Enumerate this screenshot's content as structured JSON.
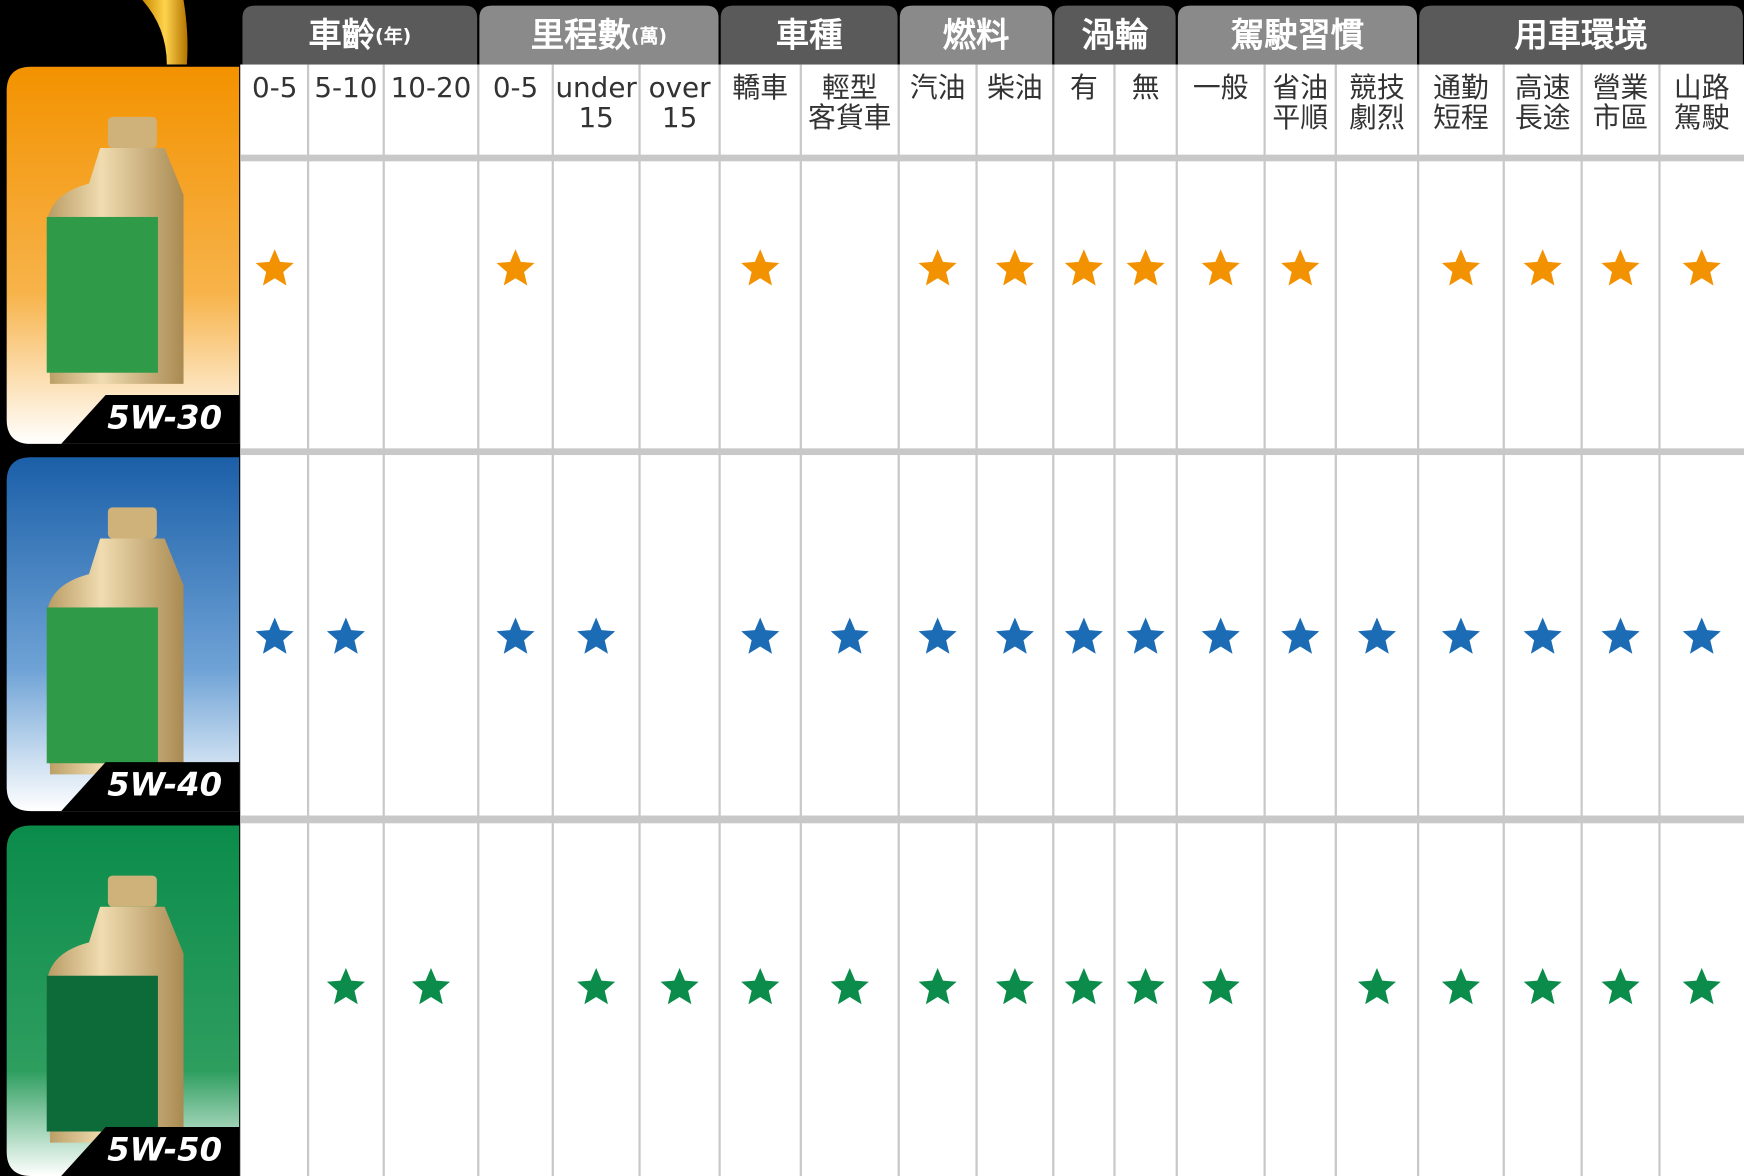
{
  "groups": [
    {
      "label": "車齡",
      "unit": "(年)",
      "columns": [
        [
          "0-5"
        ],
        [
          "5-10"
        ],
        [
          "10-20"
        ]
      ]
    },
    {
      "label": "里程數",
      "unit": "(萬)",
      "columns": [
        [
          "0-5"
        ],
        [
          "under",
          "15"
        ],
        [
          "over",
          "15"
        ]
      ]
    },
    {
      "label": "車種",
      "columns": [
        [
          "轎車"
        ],
        [
          "輕型",
          "客貨車"
        ]
      ]
    },
    {
      "label": "燃料",
      "columns": [
        [
          "汽油"
        ],
        [
          "柴油"
        ]
      ]
    },
    {
      "label": "渦輪",
      "columns": [
        [
          "有"
        ],
        [
          "無"
        ]
      ]
    },
    {
      "label": "駕駛習慣",
      "columns": [
        [
          "一般"
        ],
        [
          "省油",
          "平順"
        ],
        [
          "競技",
          "劇烈"
        ]
      ]
    },
    {
      "label": "用車環境",
      "columns": [
        [
          "通勤",
          "短程"
        ],
        [
          "高速",
          "長途"
        ],
        [
          "營業",
          "市區"
        ],
        [
          "山路",
          "駕駛"
        ]
      ]
    }
  ],
  "rows": [
    {
      "name": "5W-30",
      "color": "#f39200",
      "ratings": [
        true,
        false,
        false,
        true,
        false,
        false,
        true,
        false,
        true,
        true,
        true,
        true,
        true,
        true,
        false,
        true,
        true,
        true,
        true
      ]
    },
    {
      "name": "5W-40",
      "color": "#1b6cb4",
      "ratings": [
        true,
        true,
        false,
        true,
        true,
        false,
        true,
        true,
        true,
        true,
        true,
        true,
        true,
        true,
        true,
        true,
        true,
        true,
        true
      ]
    },
    {
      "name": "5W-50",
      "color": "#0b8c4b",
      "ratings": [
        false,
        true,
        true,
        false,
        true,
        true,
        true,
        true,
        true,
        true,
        true,
        true,
        true,
        false,
        true,
        true,
        true,
        true,
        true
      ]
    }
  ]
}
